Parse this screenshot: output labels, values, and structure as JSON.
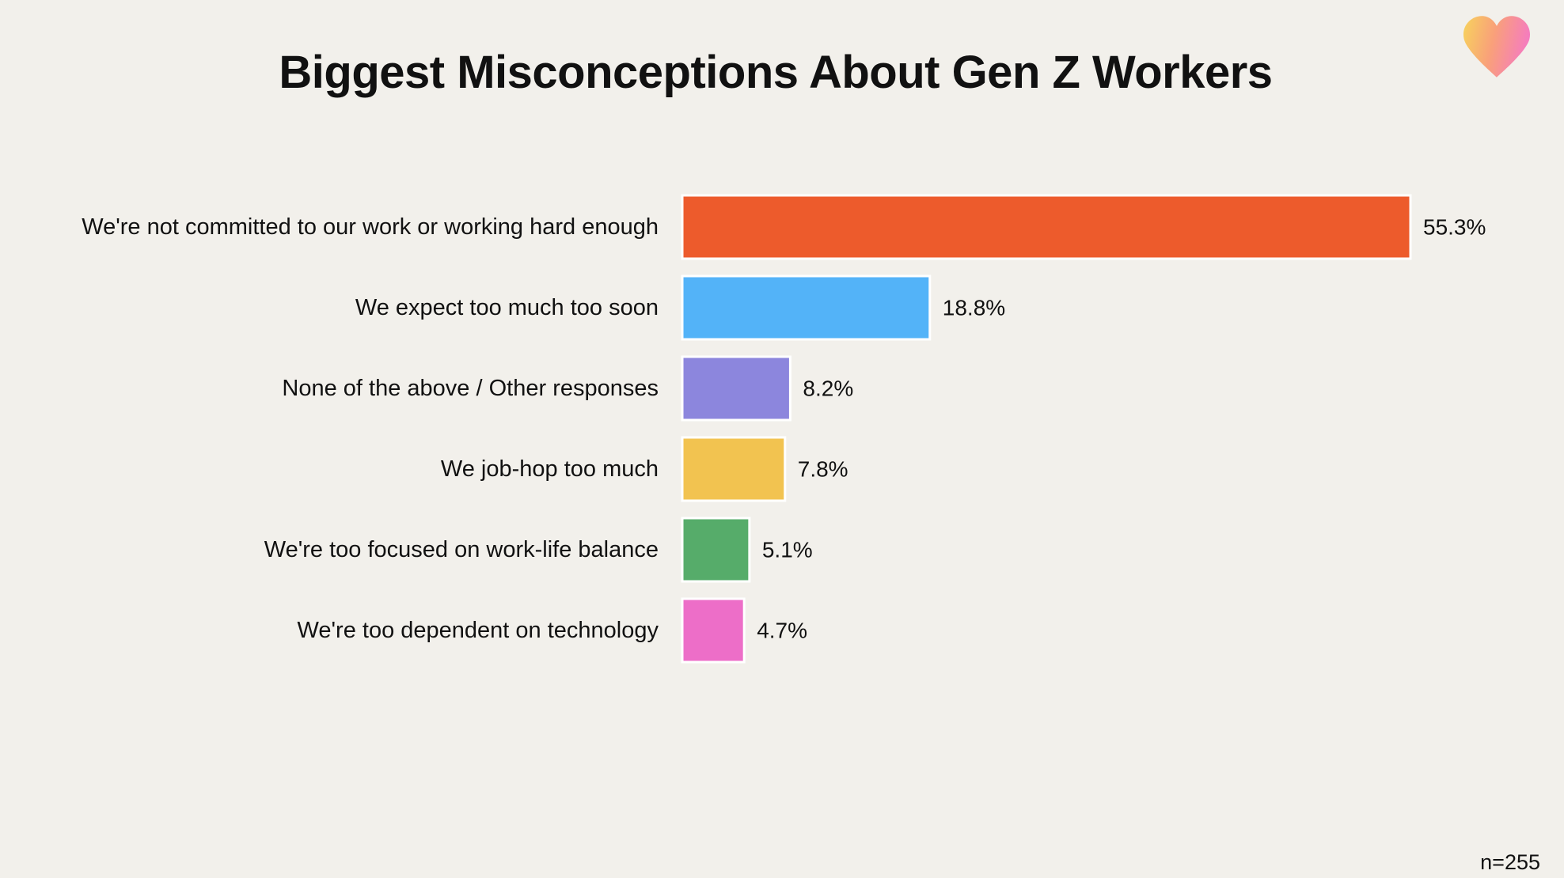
{
  "chart_data": {
    "type": "bar",
    "orientation": "horizontal",
    "title": "Biggest Misconceptions About Gen Z Workers",
    "categories": [
      "We're not committed to our work or working hard enough",
      "We expect too much too soon",
      "None of the above / Other responses",
      "We job-hop too much",
      "We're too focused on work-life balance",
      "We're too dependent on technology"
    ],
    "values": [
      55.3,
      18.8,
      8.2,
      7.8,
      5.1,
      4.7
    ],
    "value_labels": [
      "55.3%",
      "18.8%",
      "8.2%",
      "7.8%",
      "5.1%",
      "4.7%"
    ],
    "colors": [
      "#ed5b2c",
      "#53b3f8",
      "#8c86dd",
      "#f2c350",
      "#56ac6a",
      "#ed6ec8"
    ],
    "xlim": [
      0,
      55.3
    ],
    "grid": false,
    "legend": "none",
    "xlabel": "",
    "ylabel": ""
  },
  "footnote": "n=255",
  "logo": {
    "icon": "heart-icon",
    "gradient": [
      "#f7d35c",
      "#f9a07a",
      "#f57dbd"
    ]
  }
}
